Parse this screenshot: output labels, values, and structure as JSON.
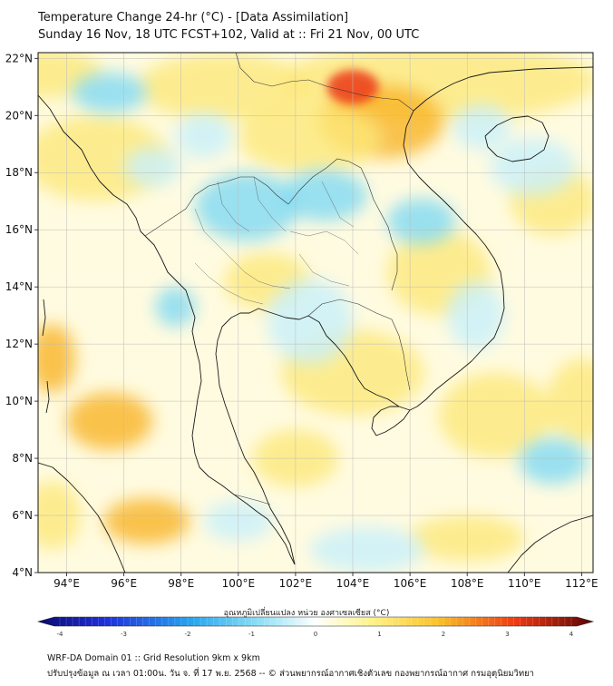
{
  "title": {
    "line1": "Temperature Change 24-hr (°C) - [Data Assimilation]",
    "line2": "Sunday 16 Nov, 18 UTC FCST+102, Valid at :: Fri 21 Nov, 00 UTC"
  },
  "map": {
    "lon_range": [
      93,
      112.4
    ],
    "lat_range": [
      4,
      22.2
    ],
    "lat_ticks": [
      {
        "value": 22,
        "label": "22°N"
      },
      {
        "value": 20,
        "label": "20°N"
      },
      {
        "value": 18,
        "label": "18°N"
      },
      {
        "value": 16,
        "label": "16°N"
      },
      {
        "value": 14,
        "label": "14°N"
      },
      {
        "value": 12,
        "label": "12°N"
      },
      {
        "value": 10,
        "label": "10°N"
      },
      {
        "value": 8,
        "label": "8°N"
      },
      {
        "value": 6,
        "label": "6°N"
      },
      {
        "value": 4,
        "label": "4°N"
      }
    ],
    "lon_ticks": [
      {
        "value": 94,
        "label": "94°E"
      },
      {
        "value": 96,
        "label": "96°E"
      },
      {
        "value": 98,
        "label": "98°E"
      },
      {
        "value": 100,
        "label": "100°E"
      },
      {
        "value": 102,
        "label": "102°E"
      },
      {
        "value": 104,
        "label": "104°E"
      },
      {
        "value": 106,
        "label": "106°E"
      },
      {
        "value": 108,
        "label": "108°E"
      },
      {
        "value": 110,
        "label": "110°E"
      },
      {
        "value": 112,
        "label": "112°E"
      }
    ],
    "colors": {
      "background": "#fffbe0",
      "yellow": "#fde97a",
      "orange": "#f8b424",
      "red": "#ec3a1a",
      "cyan": "#7fdaf4",
      "light_cyan": "#c8f0fb",
      "coast": "#1a1a1a"
    }
  },
  "colorbar": {
    "title": "อุณหภูมิเปลี่ยนแปลง หน่วย องศาเซลเซียส (°C)",
    "ticks": [
      {
        "value": -4,
        "label": "-4"
      },
      {
        "value": -3,
        "label": "-3"
      },
      {
        "value": -2,
        "label": "-2"
      },
      {
        "value": -1,
        "label": "-1"
      },
      {
        "value": 0,
        "label": "0"
      },
      {
        "value": 1,
        "label": "1"
      },
      {
        "value": 2,
        "label": "2"
      },
      {
        "value": 3,
        "label": "3"
      },
      {
        "value": 4,
        "label": "4"
      }
    ]
  },
  "footer": {
    "line1": "WRF-DA Domain 01 :: Grid Resolution 9km x 9km",
    "line2": "ปรับปรุงข้อมูล ณ เวลา 01:00น. วัน จ. ที่ 17 พ.ย. 2568 -- © ส่วนพยากรณ์อากาศเชิงตัวเลข กองพยากรณ์อากาศ กรมอุตุนิยมวิทยา"
  }
}
